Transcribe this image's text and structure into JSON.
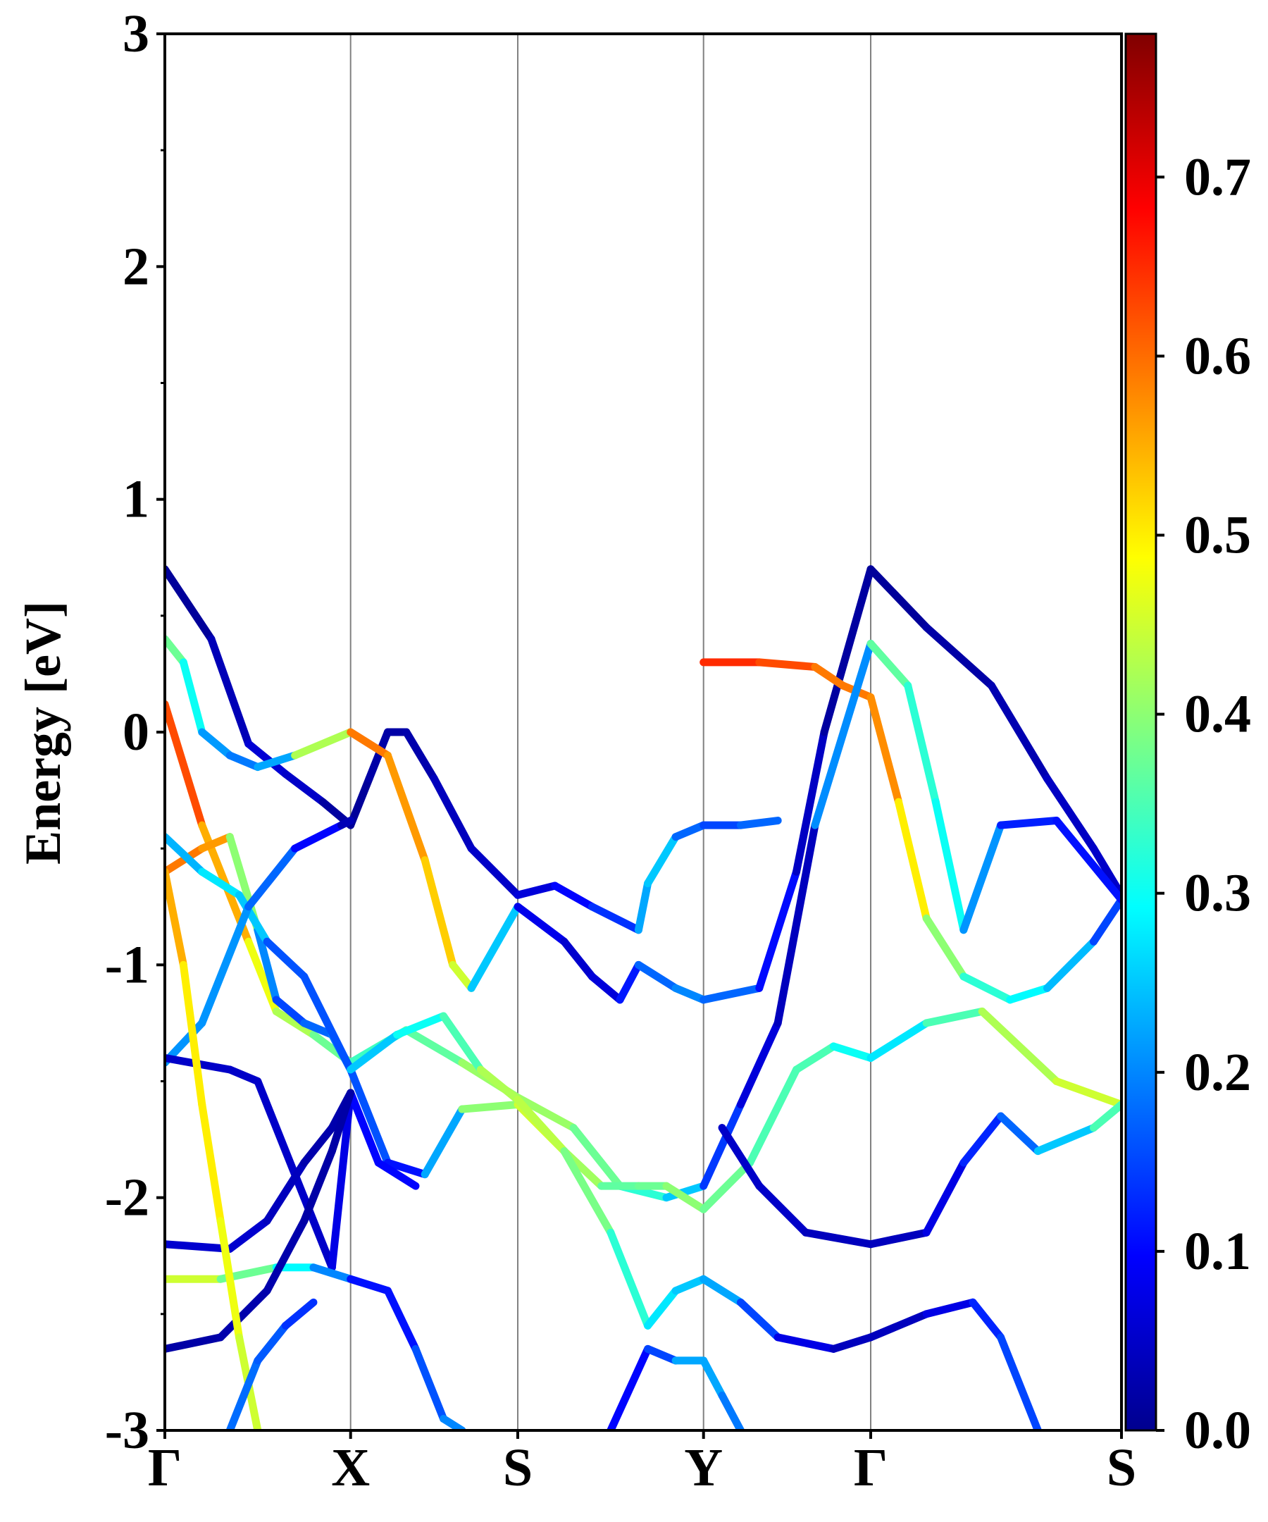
{
  "chart_data": {
    "type": "line",
    "title": "",
    "xlabel": "",
    "ylabel": "Energy [eV]",
    "ylim": [
      -3,
      3
    ],
    "yticks": [
      "-3",
      "-2",
      "-1",
      "0",
      "1",
      "2",
      "3"
    ],
    "xrange": [
      0,
      5.15
    ],
    "kpoints": [
      {
        "label": "Γ",
        "x": 0
      },
      {
        "label": "X",
        "x": 1
      },
      {
        "label": "S",
        "x": 1.9
      },
      {
        "label": "Y",
        "x": 2.9
      },
      {
        "label": "Γ",
        "x": 3.8
      },
      {
        "label": "S",
        "x": 5.15
      }
    ],
    "grid": "vertical lines at high-symmetry points",
    "colormap": "jet",
    "colorbar": {
      "min": 0.0,
      "max": 0.78,
      "ticks": [
        "0.0",
        "0.1",
        "0.2",
        "0.3",
        "0.4",
        "0.5",
        "0.6",
        "0.7"
      ]
    },
    "series": [
      {
        "points": [
          [
            0,
            0.7,
            0.0
          ],
          [
            0.25,
            0.4,
            0.02
          ],
          [
            0.45,
            -0.05,
            0.05
          ],
          [
            0.65,
            -0.18,
            0.07
          ],
          [
            0.85,
            -0.3,
            0.03
          ],
          [
            1,
            -0.4,
            0.0
          ],
          [
            1.1,
            -0.2,
            0.02
          ],
          [
            1.2,
            0.0,
            0.02
          ],
          [
            1.3,
            0.0,
            0.02
          ],
          [
            1.45,
            -0.2,
            0.03
          ],
          [
            1.65,
            -0.5,
            0.05
          ],
          [
            1.9,
            -0.7,
            0.05
          ],
          [
            2.1,
            -0.66,
            0.08
          ],
          [
            2.3,
            -0.75,
            0.12
          ],
          [
            2.55,
            -0.85,
            0.15
          ],
          [
            2.6,
            -0.65,
            0.3
          ],
          [
            2.75,
            -0.45,
            0.2
          ],
          [
            2.9,
            -0.4,
            0.15
          ],
          [
            3.1,
            -0.4,
            0.15
          ],
          [
            3.3,
            -0.38,
            0.2
          ]
        ]
      },
      {
        "points": [
          [
            0,
            0.4,
            0.4
          ],
          [
            0.1,
            0.3,
            0.35
          ],
          [
            0.2,
            0.0,
            0.25
          ],
          [
            0.35,
            -0.1,
            0.18
          ],
          [
            0.5,
            -0.15,
            0.2
          ],
          [
            0.7,
            -0.1,
            0.25
          ],
          [
            1,
            0.0,
            0.6
          ],
          [
            1.2,
            -0.1,
            0.58
          ],
          [
            1.4,
            -0.55,
            0.55
          ],
          [
            1.55,
            -1.0,
            0.5
          ],
          [
            1.65,
            -1.1,
            0.4
          ],
          [
            1.9,
            -0.75,
            0.1
          ],
          [
            2.15,
            -0.9,
            0.06
          ],
          [
            2.3,
            -1.05,
            0.05
          ],
          [
            2.45,
            -1.15,
            0.08
          ],
          [
            2.55,
            -1.0,
            0.15
          ],
          [
            2.75,
            -1.1,
            0.2
          ],
          [
            2.9,
            -1.15,
            0.2
          ],
          [
            3.2,
            -1.1,
            0.15
          ],
          [
            3.4,
            -0.6,
            0.06
          ],
          [
            3.55,
            0.0,
            0.03
          ],
          [
            3.8,
            0.7,
            0.0
          ],
          [
            4.1,
            0.45,
            0.02
          ],
          [
            4.45,
            0.2,
            0.02
          ],
          [
            4.75,
            -0.2,
            0.04
          ],
          [
            5.0,
            -0.5,
            0.05
          ],
          [
            5.15,
            -0.7,
            0.05
          ]
        ]
      },
      {
        "points": [
          [
            2.9,
            0.3,
            0.65
          ],
          [
            3.2,
            0.3,
            0.65
          ],
          [
            3.5,
            0.28,
            0.6
          ],
          [
            3.65,
            0.2,
            0.58
          ],
          [
            3.8,
            0.15,
            0.6
          ],
          [
            3.95,
            -0.3,
            0.55
          ],
          [
            4.1,
            -0.8,
            0.45
          ],
          [
            4.3,
            -1.05,
            0.35
          ],
          [
            4.55,
            -1.15,
            0.3
          ],
          [
            4.75,
            -1.1,
            0.28
          ],
          [
            5.0,
            -0.9,
            0.2
          ],
          [
            5.15,
            -0.72,
            0.1
          ]
        ]
      },
      {
        "points": [
          [
            0,
            0.12,
            0.65
          ],
          [
            0.2,
            -0.4,
            0.6
          ],
          [
            0.45,
            -0.9,
            0.5
          ],
          [
            0.6,
            -1.2,
            0.45
          ],
          [
            0.8,
            -1.3,
            0.4
          ],
          [
            1,
            -1.42,
            0.35
          ],
          [
            1.3,
            -1.28,
            0.33
          ],
          [
            1.6,
            -1.42,
            0.4
          ],
          [
            1.9,
            -1.57,
            0.42
          ],
          [
            2.2,
            -1.7,
            0.4
          ],
          [
            2.45,
            -1.95,
            0.35
          ],
          [
            2.7,
            -2.0,
            0.3
          ],
          [
            2.9,
            -1.95,
            0.2
          ],
          [
            3.1,
            -1.6,
            0.08
          ],
          [
            3.3,
            -1.25,
            0.05
          ],
          [
            3.5,
            -0.4,
            0.03
          ],
          [
            3.8,
            0.38,
            0.38
          ],
          [
            4.0,
            0.2,
            0.35
          ],
          [
            4.15,
            -0.3,
            0.3
          ],
          [
            4.3,
            -0.85,
            0.3
          ],
          [
            4.5,
            -0.4,
            0.12
          ],
          [
            4.8,
            -0.38,
            0.12
          ],
          [
            5.15,
            -0.72,
            0.1
          ]
        ]
      },
      {
        "points": [
          [
            0,
            -0.6,
            0.6
          ],
          [
            0.2,
            -0.5,
            0.58
          ],
          [
            0.35,
            -0.45,
            0.55
          ],
          [
            0.5,
            -0.85,
            0.25
          ],
          [
            0.6,
            -1.15,
            0.15
          ],
          [
            0.75,
            -1.25,
            0.15
          ],
          [
            0.9,
            -1.3,
            0.2
          ],
          [
            1,
            -1.45,
            0.2
          ],
          [
            1.2,
            -1.85,
            0.12
          ],
          [
            1.4,
            -1.9,
            0.1
          ],
          [
            1.6,
            -1.62,
            0.35
          ],
          [
            1.9,
            -1.6,
            0.45
          ],
          [
            2.15,
            -1.8,
            0.45
          ],
          [
            2.35,
            -1.95,
            0.38
          ],
          [
            2.55,
            -1.95,
            0.35
          ],
          [
            2.7,
            -1.95,
            0.4
          ],
          [
            2.9,
            -2.05,
            0.4
          ],
          [
            3.15,
            -1.85,
            0.35
          ],
          [
            3.4,
            -1.45,
            0.35
          ],
          [
            3.6,
            -1.35,
            0.35
          ],
          [
            3.8,
            -1.4,
            0.25
          ],
          [
            4.1,
            -1.25,
            0.3
          ],
          [
            4.4,
            -1.2,
            0.4
          ],
          [
            4.8,
            -1.5,
            0.45
          ],
          [
            5.15,
            -1.6,
            0.45
          ]
        ]
      },
      {
        "points": [
          [
            0,
            -0.45,
            0.22
          ],
          [
            0.2,
            -0.6,
            0.25
          ],
          [
            0.4,
            -0.7,
            0.3
          ],
          [
            0.55,
            -0.9,
            0.2
          ],
          [
            0.75,
            -1.05,
            0.12
          ],
          [
            1,
            -1.45,
            0.2
          ],
          [
            1.25,
            -1.3,
            0.3
          ],
          [
            1.5,
            -1.22,
            0.3
          ],
          [
            1.7,
            -1.45,
            0.4
          ],
          [
            1.9,
            -1.58,
            0.45
          ],
          [
            2.15,
            -1.8,
            0.42
          ],
          [
            2.4,
            -2.15,
            0.35
          ],
          [
            2.6,
            -2.55,
            0.3
          ],
          [
            2.75,
            -2.4,
            0.25
          ],
          [
            2.9,
            -2.35,
            0.25
          ],
          [
            3.1,
            -2.45,
            0.2
          ],
          [
            3.3,
            -2.6,
            0.1
          ],
          [
            3.6,
            -2.65,
            0.05
          ],
          [
            3.8,
            -2.6,
            0.03
          ],
          [
            4.1,
            -2.5,
            0.05
          ],
          [
            4.35,
            -2.45,
            0.1
          ],
          [
            4.5,
            -2.6,
            0.15
          ],
          [
            4.7,
            -3.0,
            0.15
          ]
        ]
      },
      {
        "points": [
          [
            0,
            -1.42,
            0.2
          ],
          [
            0.2,
            -1.25,
            0.22
          ],
          [
            0.45,
            -0.75,
            0.2
          ],
          [
            0.7,
            -0.5,
            0.15
          ],
          [
            0.95,
            -0.4,
            0.05
          ],
          [
            1,
            -0.38,
            0.02
          ]
        ]
      },
      {
        "points": [
          [
            0,
            -1.4,
            0.05
          ],
          [
            0.35,
            -1.45,
            0.05
          ],
          [
            0.5,
            -1.5,
            0.05
          ],
          [
            0.75,
            -2.0,
            0.05
          ],
          [
            0.9,
            -2.3,
            0.05
          ],
          [
            1,
            -1.55,
            0.1
          ],
          [
            1.15,
            -1.85,
            0.1
          ],
          [
            1.35,
            -1.95,
            0.1
          ]
        ]
      },
      {
        "points": [
          [
            0,
            -2.2,
            0.05
          ],
          [
            0.35,
            -2.22,
            0.06
          ],
          [
            0.55,
            -2.1,
            0.05
          ],
          [
            0.75,
            -1.85,
            0.03
          ],
          [
            0.9,
            -1.7,
            0.02
          ],
          [
            1,
            -1.55,
            0.03
          ]
        ]
      },
      {
        "points": [
          [
            0,
            -2.35,
            0.45
          ],
          [
            0.3,
            -2.35,
            0.45
          ],
          [
            0.6,
            -2.3,
            0.3
          ],
          [
            0.8,
            -2.3,
            0.28
          ],
          [
            1,
            -2.35,
            0.12
          ],
          [
            1.2,
            -2.4,
            0.1
          ],
          [
            1.35,
            -2.65,
            0.12
          ],
          [
            1.5,
            -2.95,
            0.2
          ],
          [
            1.6,
            -3.0,
            0.2
          ]
        ]
      },
      {
        "points": [
          [
            0,
            -2.65,
            0.02
          ],
          [
            0.3,
            -2.6,
            0.02
          ],
          [
            0.55,
            -2.4,
            0.03
          ],
          [
            0.75,
            -2.1,
            0.02
          ],
          [
            0.9,
            -1.8,
            0.02
          ],
          [
            1,
            -1.55,
            0.02
          ]
        ]
      },
      {
        "points": [
          [
            0,
            -0.6,
            0.6
          ],
          [
            0.1,
            -1.0,
            0.5
          ],
          [
            0.2,
            -1.6,
            0.5
          ],
          [
            0.3,
            -2.1,
            0.5
          ],
          [
            0.4,
            -2.6,
            0.45
          ],
          [
            0.5,
            -3.0,
            0.45
          ]
        ]
      },
      {
        "points": [
          [
            2.4,
            -3.0,
            0.1
          ],
          [
            2.6,
            -2.65,
            0.1
          ],
          [
            2.75,
            -2.7,
            0.2
          ],
          [
            2.9,
            -2.7,
            0.25
          ],
          [
            3.0,
            -2.85,
            0.2
          ],
          [
            3.1,
            -3.0,
            0.18
          ]
        ]
      },
      {
        "points": [
          [
            0.35,
            -3.0,
            0.18
          ],
          [
            0.5,
            -2.7,
            0.18
          ],
          [
            0.65,
            -2.55,
            0.15
          ],
          [
            0.8,
            -2.45,
            0.12
          ]
        ]
      },
      {
        "points": [
          [
            3.0,
            -1.7,
            0.05
          ],
          [
            3.2,
            -1.95,
            0.05
          ],
          [
            3.45,
            -2.15,
            0.05
          ],
          [
            3.8,
            -2.2,
            0.03
          ],
          [
            4.1,
            -2.15,
            0.05
          ],
          [
            4.3,
            -1.85,
            0.1
          ],
          [
            4.5,
            -1.65,
            0.15
          ],
          [
            4.7,
            -1.8,
            0.2
          ],
          [
            5.0,
            -1.7,
            0.3
          ],
          [
            5.15,
            -1.6,
            0.4
          ]
        ]
      }
    ]
  }
}
